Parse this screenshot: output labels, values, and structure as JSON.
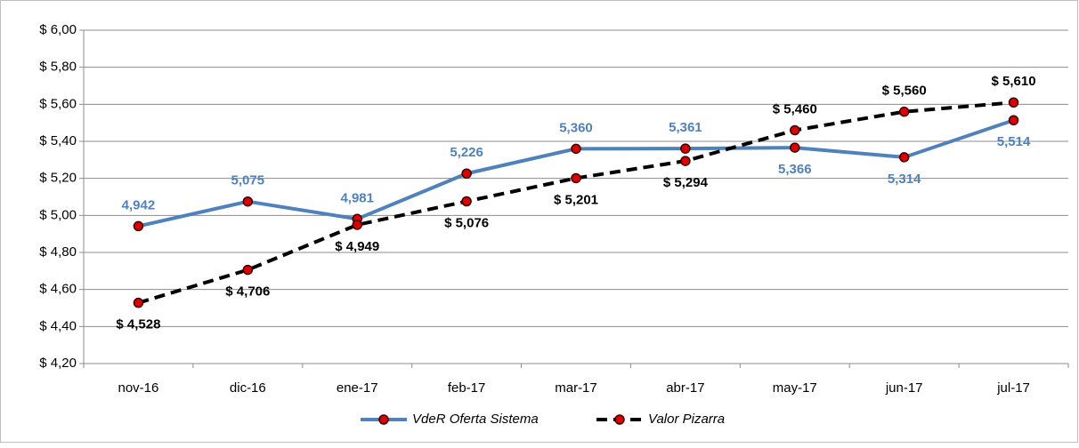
{
  "chart_data": {
    "type": "line",
    "categories": [
      "nov-16",
      "dic-16",
      "ene-17",
      "feb-17",
      "mar-17",
      "abr-17",
      "may-17",
      "jun-17",
      "jul-17"
    ],
    "series": [
      {
        "name": "VdeR Oferta Sistema",
        "color": "#4f81bd",
        "values": [
          4.942,
          5.075,
          4.981,
          5.226,
          5.36,
          5.361,
          5.366,
          5.314,
          5.514
        ],
        "value_labels": [
          "4,942",
          "5,075",
          "4,981",
          "5,226",
          "5,360",
          "5,361",
          "5,366",
          "5,314",
          "5,514"
        ]
      },
      {
        "name": "Valor Pizarra",
        "color": "#000000",
        "values": [
          4.528,
          4.706,
          4.949,
          5.076,
          5.201,
          5.294,
          5.46,
          5.56,
          5.61
        ],
        "value_labels": [
          "$ 4,528",
          "$ 4,706",
          "$ 4,949",
          "$ 5,076",
          "$ 5,201",
          "$ 5,294",
          "$ 5,460",
          "$ 5,560",
          "$ 5,610"
        ]
      }
    ],
    "marker_color": "#e00000",
    "ylim": [
      4.2,
      6.0
    ],
    "yticks": [
      {
        "value": 4.2,
        "label": "$ 4,20"
      },
      {
        "value": 4.4,
        "label": "$ 4,40"
      },
      {
        "value": 4.6,
        "label": "$ 4,60"
      },
      {
        "value": 4.8,
        "label": "$ 4,80"
      },
      {
        "value": 5.0,
        "label": "$ 5,00"
      },
      {
        "value": 5.2,
        "label": "$ 5,20"
      },
      {
        "value": 5.4,
        "label": "$ 5,40"
      },
      {
        "value": 5.6,
        "label": "$ 5,60"
      },
      {
        "value": 5.8,
        "label": "$ 5,80"
      },
      {
        "value": 6.0,
        "label": "$ 6,00"
      }
    ],
    "grid": true,
    "legend": "bottom"
  }
}
